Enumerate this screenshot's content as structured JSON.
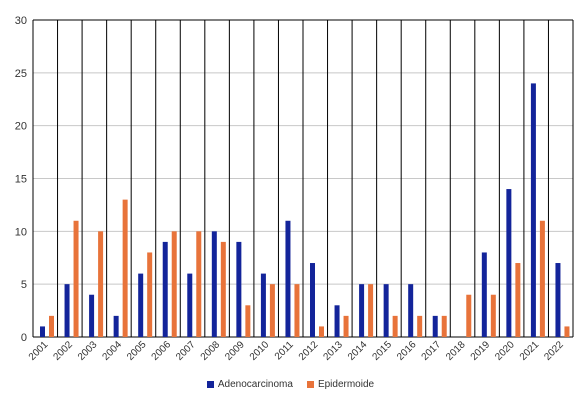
{
  "colors": {
    "adenocarcinoma": "#13249a",
    "epidermoide": "#e8733a",
    "grid": "#000000"
  },
  "chart_data": {
    "type": "bar",
    "title": "",
    "xlabel": "",
    "ylabel": "",
    "ylim": [
      0,
      30
    ],
    "yticks": [
      "0",
      "5",
      "10",
      "15",
      "20",
      "25",
      "30"
    ],
    "grid": "vertical category separators and horizontal gridlines",
    "legend_position": "bottom",
    "categories": [
      "2001",
      "2002",
      "2003",
      "2004",
      "2005",
      "2006",
      "2007",
      "2008",
      "2009",
      "2010",
      "2011",
      "2012",
      "2013",
      "2014",
      "2015",
      "2016",
      "2017",
      "2018",
      "2019",
      "2020",
      "2021",
      "2022"
    ],
    "series": [
      {
        "name": "Adenocarcinoma",
        "values": [
          1,
          5,
          4,
          2,
          6,
          9,
          6,
          10,
          9,
          6,
          11,
          7,
          3,
          5,
          5,
          5,
          2,
          0,
          8,
          14,
          24,
          7
        ]
      },
      {
        "name": "Epidermoide",
        "values": [
          2,
          11,
          10,
          13,
          8,
          10,
          10,
          9,
          3,
          5,
          5,
          1,
          2,
          5,
          2,
          2,
          2,
          4,
          4,
          7,
          11,
          1
        ]
      }
    ]
  }
}
